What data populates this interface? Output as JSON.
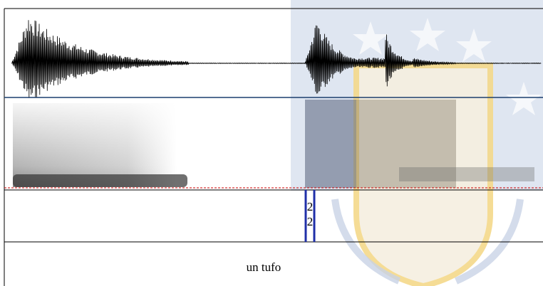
{
  "tiers": [
    {
      "labels": [
        "2",
        "2"
      ]
    },
    {
      "text": "un tufo"
    }
  ]
}
